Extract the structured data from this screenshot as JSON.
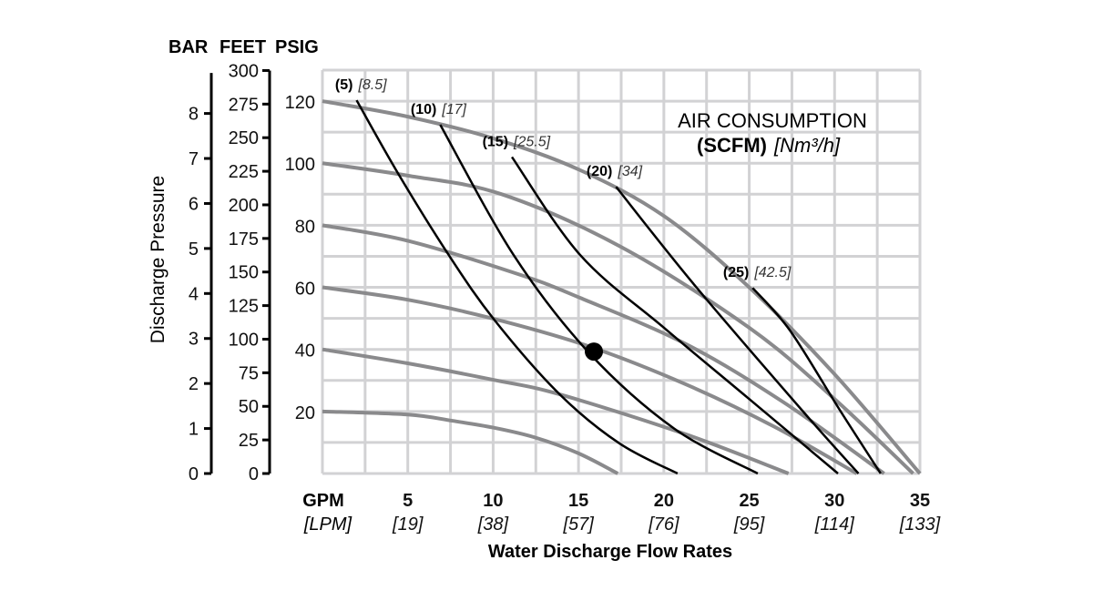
{
  "chart_data": {
    "type": "line",
    "xlabel": "Water Discharge Flow Rates",
    "ylabel": "Discharge Pressure",
    "x_unit_label": "GPM",
    "x_unit_label_alt": "[LPM]",
    "x_ticks": [
      5,
      10,
      15,
      20,
      25,
      30,
      35
    ],
    "x_ticks_alt": [
      "[19]",
      "[38]",
      "[57]",
      "[76]",
      "[95]",
      "[114]",
      "[133]"
    ],
    "xlim": [
      0,
      35
    ],
    "ylim": [
      0,
      130
    ],
    "y_axes_headers": [
      "BAR",
      "FEET",
      "PSIG"
    ],
    "psig_ticks": [
      20,
      40,
      60,
      80,
      100,
      120
    ],
    "feet_ticks": [
      0,
      25,
      50,
      75,
      100,
      125,
      150,
      175,
      200,
      225,
      250,
      275,
      300
    ],
    "bar_ticks": [
      0,
      1,
      2,
      3,
      4,
      5,
      6,
      7,
      8
    ],
    "grid": true,
    "legend_title": "AIR CONSUMPTION",
    "legend_unit_bold": "(SCFM)",
    "legend_unit_alt": "[Nm³/h]",
    "colors": {
      "pressure_curves": "#8a8a8c",
      "air_curves": "#000000",
      "grid": "#d2d2d4"
    },
    "pressure_curves": [
      {
        "start_psig": 120,
        "points": [
          [
            0,
            120
          ],
          [
            5,
            115
          ],
          [
            10,
            108
          ],
          [
            15,
            98
          ],
          [
            20,
            83
          ],
          [
            25,
            60
          ],
          [
            30,
            32
          ],
          [
            35,
            0
          ]
        ]
      },
      {
        "start_psig": 100,
        "points": [
          [
            0,
            100
          ],
          [
            5,
            96
          ],
          [
            10.5,
            90
          ],
          [
            17.5,
            73
          ],
          [
            25,
            47
          ],
          [
            30,
            24
          ],
          [
            34.6,
            0
          ]
        ]
      },
      {
        "start_psig": 80,
        "points": [
          [
            0,
            80
          ],
          [
            5,
            75
          ],
          [
            11.6,
            64
          ],
          [
            15.1,
            56.6
          ],
          [
            21.3,
            41.7
          ],
          [
            27,
            23
          ],
          [
            32.9,
            0
          ]
        ]
      },
      {
        "start_psig": 60,
        "points": [
          [
            0,
            60
          ],
          [
            5,
            56
          ],
          [
            10,
            49.9
          ],
          [
            15.6,
            41
          ],
          [
            21.3,
            28.7
          ],
          [
            26.5,
            15
          ],
          [
            31.3,
            0
          ]
        ]
      },
      {
        "start_psig": 40,
        "points": [
          [
            0,
            40
          ],
          [
            5,
            35.5
          ],
          [
            10,
            30.2
          ],
          [
            13.9,
            25.5
          ],
          [
            21.3,
            12.6
          ],
          [
            27.3,
            0
          ]
        ]
      },
      {
        "start_psig": 20,
        "points": [
          [
            0,
            20
          ],
          [
            5,
            19
          ],
          [
            7.6,
            17
          ],
          [
            10,
            14.8
          ],
          [
            12.4,
            11.7
          ],
          [
            15,
            6.5
          ],
          [
            17.3,
            0
          ]
        ]
      }
    ],
    "air_curves": [
      {
        "label": "(5)",
        "label_alt": "[8.5]",
        "points": [
          [
            2,
            120.3
          ],
          [
            4.4,
            97
          ],
          [
            7.4,
            70.4
          ],
          [
            10.1,
            49.3
          ],
          [
            13.9,
            25.5
          ],
          [
            17.4,
            9.7
          ],
          [
            20.8,
            0
          ]
        ]
      },
      {
        "label": "(10)",
        "label_alt": "[17]",
        "points": [
          [
            6.9,
            112.4
          ],
          [
            11.2,
            70.4
          ],
          [
            15.6,
            39
          ],
          [
            20.6,
            14.5
          ],
          [
            25.5,
            0
          ]
        ]
      },
      {
        "label": "(15)",
        "label_alt": "[25.5]",
        "points": [
          [
            11.1,
            102
          ],
          [
            15.1,
            70.4
          ],
          [
            20,
            47
          ],
          [
            25,
            24
          ],
          [
            30.2,
            0
          ]
        ]
      },
      {
        "label": "(20)",
        "label_alt": "[34]",
        "points": [
          [
            17.2,
            92.4
          ],
          [
            21.8,
            60.7
          ],
          [
            28.2,
            19.7
          ],
          [
            31.4,
            0
          ]
        ]
      },
      {
        "label": "(25)",
        "label_alt": "[42.5]",
        "points": [
          [
            25.2,
            59.8
          ],
          [
            27.4,
            46
          ],
          [
            30.3,
            20.5
          ],
          [
            32.7,
            0
          ]
        ]
      }
    ],
    "marker": {
      "x": 15.9,
      "y": 39.3
    }
  }
}
